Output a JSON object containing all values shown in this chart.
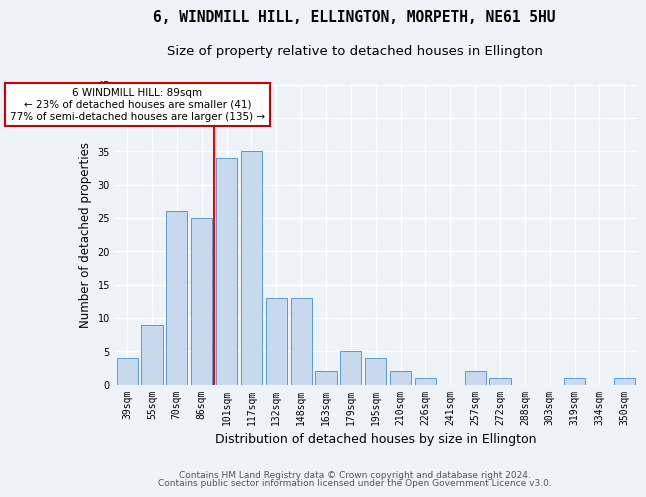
{
  "title": "6, WINDMILL HILL, ELLINGTON, MORPETH, NE61 5HU",
  "subtitle": "Size of property relative to detached houses in Ellington",
  "xlabel": "Distribution of detached houses by size in Ellington",
  "ylabel": "Number of detached properties",
  "bin_labels": [
    "39sqm",
    "55sqm",
    "70sqm",
    "86sqm",
    "101sqm",
    "117sqm",
    "132sqm",
    "148sqm",
    "163sqm",
    "179sqm",
    "195sqm",
    "210sqm",
    "226sqm",
    "241sqm",
    "257sqm",
    "272sqm",
    "288sqm",
    "303sqm",
    "319sqm",
    "334sqm",
    "350sqm"
  ],
  "values": [
    4,
    9,
    26,
    25,
    34,
    35,
    13,
    13,
    2,
    5,
    4,
    2,
    1,
    0,
    2,
    1,
    0,
    0,
    1,
    0,
    1
  ],
  "bar_color": "#c9d9ed",
  "bar_edge_color": "#5b9bd5",
  "red_line_x": 3.5,
  "annotation_line1": "6 WINDMILL HILL: 89sqm",
  "annotation_line2": "← 23% of detached houses are smaller (41)",
  "annotation_line3": "77% of semi-detached houses are larger (135) →",
  "annotation_box_color": "#ffffff",
  "annotation_box_edge": "#cc0000",
  "ylim": [
    0,
    45
  ],
  "yticks": [
    0,
    5,
    10,
    15,
    20,
    25,
    30,
    35,
    40,
    45
  ],
  "footer1": "Contains HM Land Registry data © Crown copyright and database right 2024.",
  "footer2": "Contains public sector information licensed under the Open Government Licence v3.0.",
  "bg_color": "#eef2f9",
  "grid_color": "#ffffff",
  "title_fontsize": 10.5,
  "subtitle_fontsize": 9.5,
  "ylabel_fontsize": 8.5,
  "xlabel_fontsize": 9,
  "tick_fontsize": 7,
  "footer_fontsize": 6.5,
  "annotation_fontsize": 7.5
}
